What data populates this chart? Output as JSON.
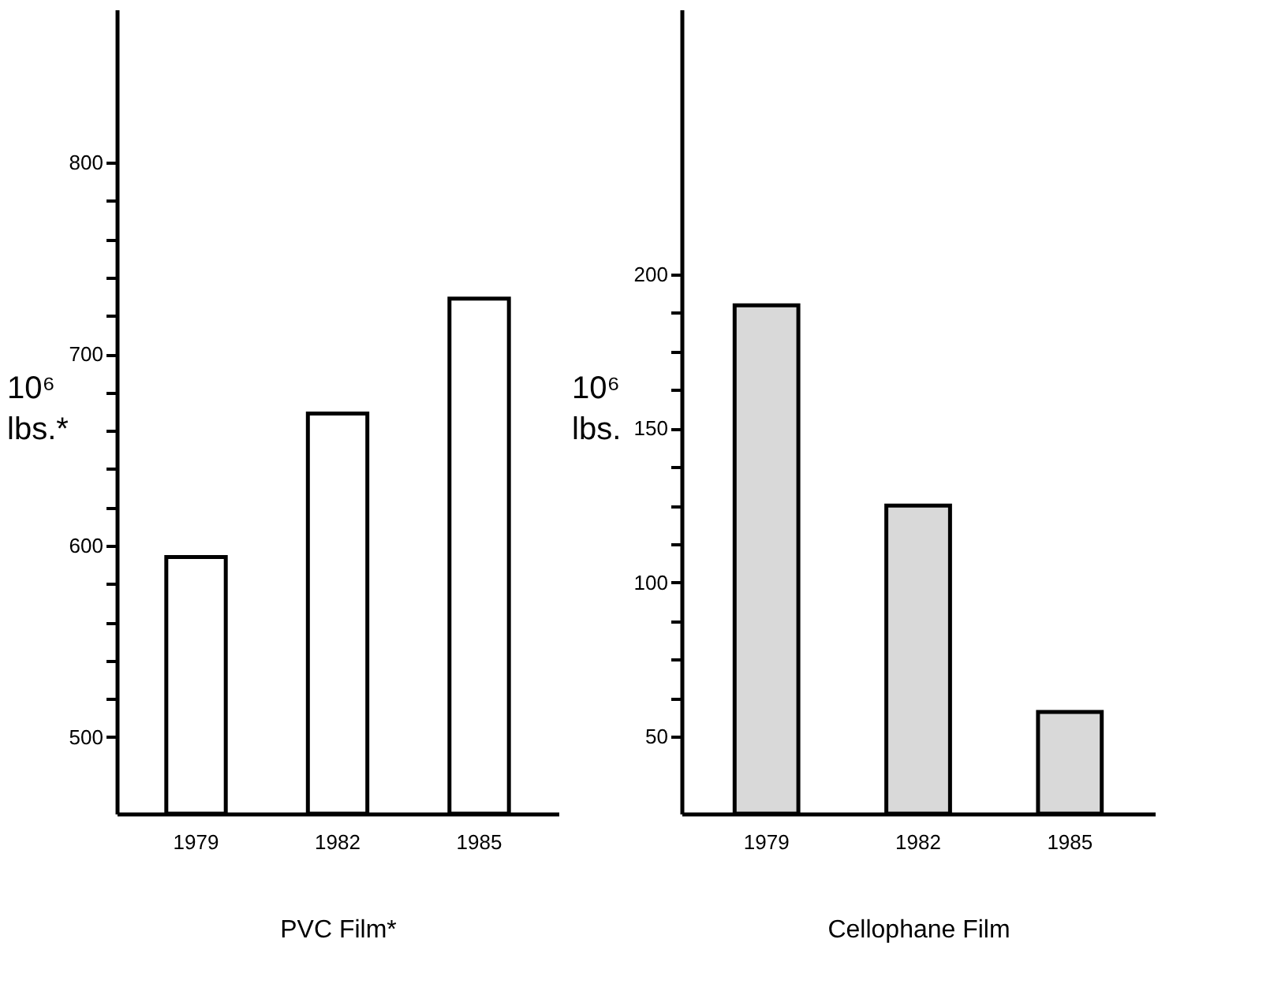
{
  "chart_data": [
    {
      "type": "bar",
      "xlabel": "PVC Film*",
      "ylabel": "10⁶ lbs.*",
      "categories": [
        "1979",
        "1982",
        "1985"
      ],
      "series": [
        {
          "color": "#ffffff",
          "values": [
            594,
            669,
            729
          ]
        }
      ],
      "ylim": [
        460,
        880
      ],
      "yticks": [
        500,
        {
          "value": 520,
          "label": null
        },
        {
          "value": 540,
          "label": null
        },
        {
          "value": 560,
          "label": null
        },
        {
          "value": 580,
          "label": null
        },
        600,
        {
          "value": 620,
          "label": null
        },
        {
          "value": 640,
          "label": null
        },
        {
          "value": 660,
          "label": null
        },
        {
          "value": 680,
          "label": null
        },
        700,
        {
          "value": 720,
          "label": null
        },
        {
          "value": 740,
          "label": null
        },
        {
          "value": 760,
          "label": null
        },
        {
          "value": 780,
          "label": null
        },
        800
      ],
      "grid": false
    },
    {
      "type": "bar",
      "xlabel": "Cellophane Film",
      "ylabel": "10⁶ lbs.",
      "categories": [
        "1979",
        "1982",
        "1985"
      ],
      "series": [
        {
          "color": "#d9d9d9",
          "values": [
            190,
            125,
            58
          ]
        }
      ],
      "ylim": [
        25,
        286
      ],
      "yticks": [
        50,
        {
          "value": 62.5,
          "label": null
        },
        {
          "value": 75,
          "label": null
        },
        {
          "value": 87.5,
          "label": null
        },
        100,
        {
          "value": 112.5,
          "label": null
        },
        {
          "value": 125,
          "label": null
        },
        {
          "value": 137.5,
          "label": null
        },
        150,
        {
          "value": 162.5,
          "label": null
        },
        {
          "value": 175,
          "label": null
        },
        {
          "value": 187.5,
          "label": null
        },
        200
      ],
      "grid": false
    }
  ]
}
